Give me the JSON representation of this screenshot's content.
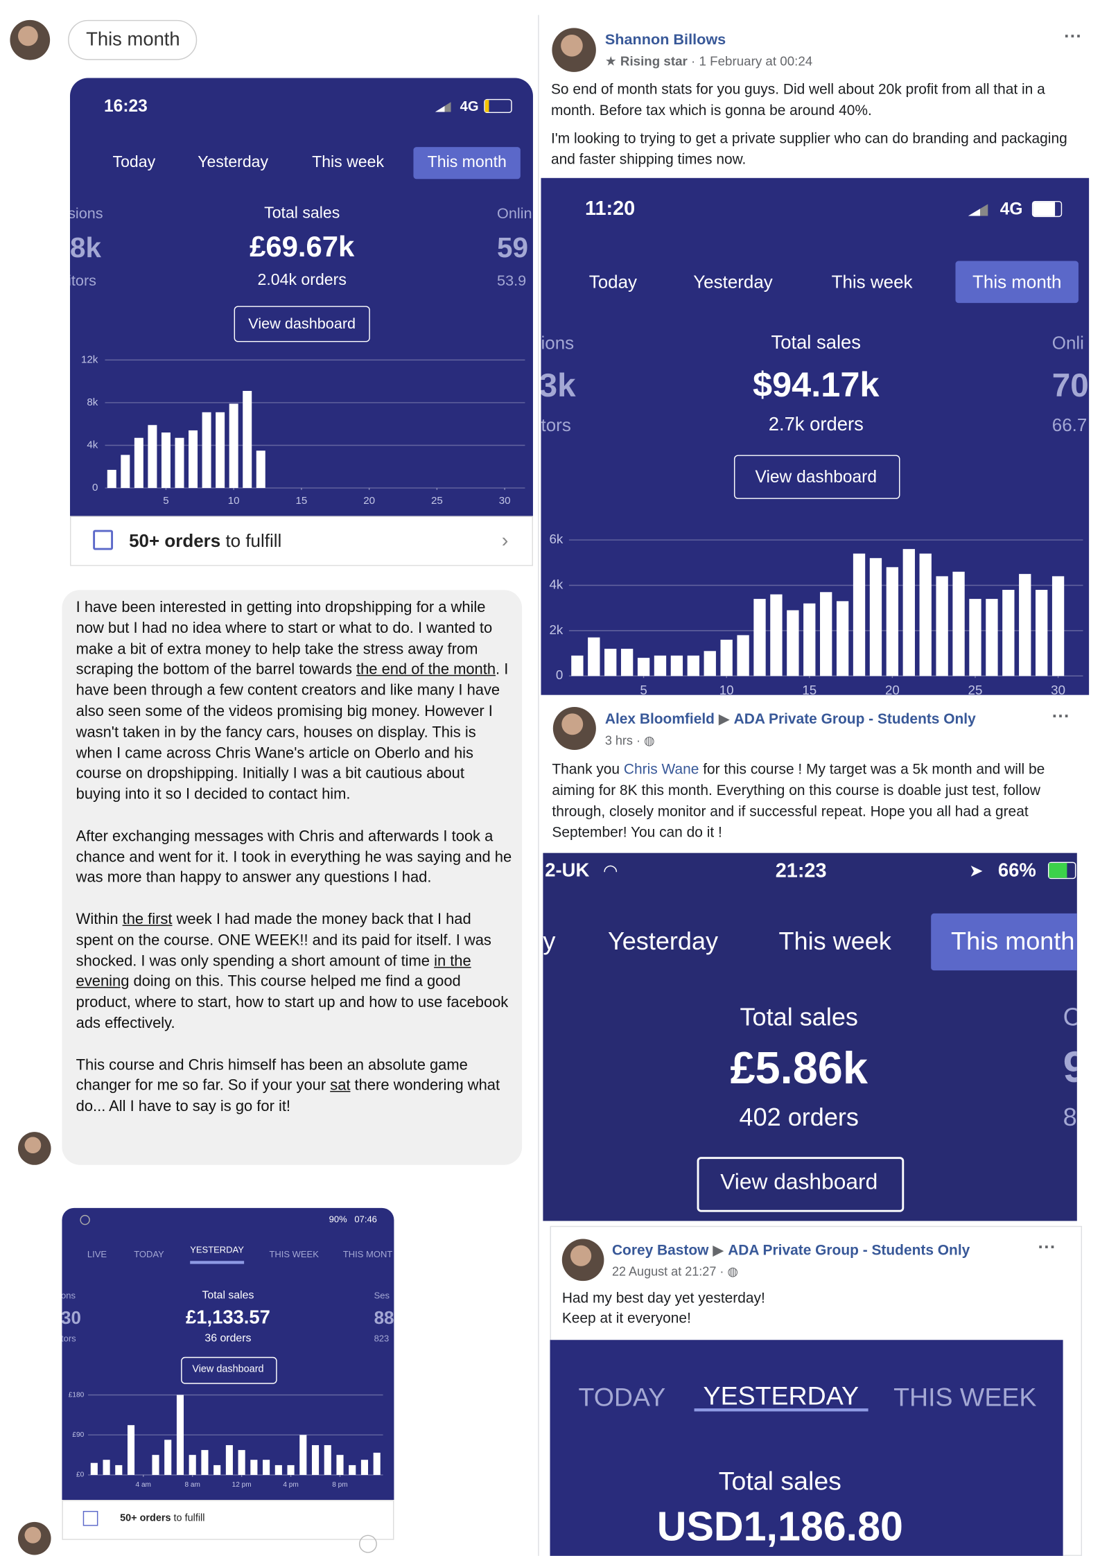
{
  "chip": "This month",
  "screens": [
    {
      "time": "16:23",
      "network": "4G",
      "tabs": [
        "Today",
        "Yesterday",
        "This week",
        "This month"
      ],
      "active_tab": 3,
      "left_stat": [
        "sions",
        "8k",
        "itors"
      ],
      "label": "Total sales",
      "total": "£69.67k",
      "orders": "2.04k orders",
      "right_stat": [
        "Onlin",
        "59",
        "53.9"
      ],
      "button": "View dashboard",
      "footer_bold": "50+ orders",
      "footer_rest": "to fulfill"
    },
    {
      "time": "11:20",
      "network": "4G",
      "tabs": [
        "Today",
        "Yesterday",
        "This week",
        "This month"
      ],
      "active_tab": 3,
      "left_stat": [
        "ions",
        "3k",
        "tors"
      ],
      "label": "Total sales",
      "total": "$94.17k",
      "orders": "2.7k orders",
      "right_stat": [
        "Onli",
        "70",
        "66.7"
      ],
      "button": "View dashboard"
    },
    {
      "carrier": "2-UK",
      "time": "21:23",
      "battery": "66%",
      "tabs": [
        "y",
        "Yesterday",
        "This week",
        "This month"
      ],
      "active_tab": 3,
      "label": "Total sales",
      "total": "£5.86k",
      "orders": "402 orders",
      "right_stat": [
        "C",
        "9",
        "8"
      ],
      "button": "View dashboard"
    },
    {
      "battery": "90%",
      "time": "07:46",
      "tabs": [
        "LIVE",
        "TODAY",
        "YESTERDAY",
        "THIS WEEK",
        "THIS MONT"
      ],
      "active_tab": 2,
      "left_stat": [
        "ons",
        "30",
        "tors"
      ],
      "label": "Total sales",
      "total": "£1,133.57",
      "orders": "36 orders",
      "right_stat": [
        "Ses",
        "88",
        "823"
      ],
      "button": "View dashboard",
      "footer_bold": "50+ orders",
      "footer_rest": "to fulfill"
    },
    {
      "tabs": [
        "TODAY",
        "YESTERDAY",
        "THIS WEEK"
      ],
      "active_tab": 1,
      "label": "Total sales",
      "total": "USD1,186.80"
    }
  ],
  "testimonial": [
    [
      "I have been interested in getting into dropshipping for a while now but I had no idea where to start or what to do. I wanted to make a bit of extra money to help take the stress away from scraping the bottom of the barrel towards ",
      "the end of the month",
      ". I have been through a few content creators and like many I have also seen some of the videos promising big money. However I wasn't taken in by the fancy cars, houses on display. This is when I came across Chris Wane's article on Oberlo and his course on dropshipping. Initially I was a bit cautious about buying into it so I decided to contact him."
    ],
    [
      "After exchanging messages with Chris and afterwards I took a chance and went for it. I took in everything he was saying and he was more than happy to answer any questions I had."
    ],
    [
      "Within ",
      "the first",
      " week I had made the money back that I had spent on the course. ONE WEEK!! and its paid for itself. I was shocked. I was only spending a short amount of time ",
      "in the evening",
      " doing on this. This course helped me find a good product, where to start, how to start up and how to use facebook ads effectively."
    ],
    [
      "This course and Chris himself has been an absolute game changer for me so far. So if your your ",
      "sat",
      " there wondering what do... All I have to say is go for it!"
    ]
  ],
  "posts": [
    {
      "name": "Shannon Billows",
      "badge": "Rising star",
      "date": "1 February at 00:24",
      "paragraphs": [
        "So end of month stats for you guys. Did well about 20k profit from all that in a month. Before tax which is gonna be around 40%.",
        "I'm looking to trying to get a private supplier who can do branding and packaging and faster shipping times now."
      ]
    },
    {
      "name": "Alex Bloomfield",
      "group": "ADA Private Group - Students Only",
      "date": "3 hrs",
      "text_before": "Thank you ",
      "link": "Chris Wane",
      "text_after": " for this course ! My target was a 5k month and will be aiming for 8K this month. Everything on this course is doable just test, follow through, closely monitor and if successful repeat. Hope you all had a great September! You can do it !"
    },
    {
      "name": "Corey Bastow",
      "group": "ADA Private Group - Students Only",
      "date": "22 August at 21:27",
      "lines": [
        "Had my best day yet yesterday!",
        "Keep at it everyone!"
      ]
    }
  ],
  "chart_data": [
    {
      "type": "bar",
      "color": "#ffffff",
      "grid": true,
      "x": [
        1,
        2,
        3,
        4,
        5,
        6,
        7,
        8,
        9,
        10,
        11,
        12
      ],
      "values": [
        1700,
        3100,
        4700,
        5900,
        5200,
        4700,
        5400,
        7100,
        7100,
        7900,
        9100,
        3500
      ],
      "xlim": [
        0.5,
        31.5
      ],
      "xticks": [
        5,
        10,
        15,
        20,
        25,
        30
      ],
      "ylim": [
        0,
        12000
      ],
      "yticks": [
        0,
        {
          "value": 4000,
          "label": "4k"
        },
        {
          "value": 8000,
          "label": "8k"
        },
        {
          "value": 12000,
          "label": "12k"
        }
      ]
    },
    {
      "type": "bar",
      "color": "#ffffff",
      "grid": true,
      "x": [
        1,
        2,
        3,
        4,
        5,
        6,
        7,
        8,
        9,
        10,
        11,
        12,
        13,
        14,
        15,
        16,
        17,
        18,
        19,
        20,
        21,
        22,
        23,
        24,
        25,
        26,
        27,
        28,
        29,
        30
      ],
      "values": [
        900,
        1700,
        1200,
        1200,
        800,
        900,
        900,
        900,
        1100,
        1600,
        1800,
        3400,
        3600,
        2900,
        3200,
        3700,
        3300,
        5400,
        5200,
        4800,
        5600,
        5400,
        4400,
        4600,
        3400,
        3400,
        3800,
        4500,
        3800,
        4400
      ],
      "xlim": [
        0.5,
        31.5
      ],
      "xticks": [
        5,
        10,
        15,
        20,
        25,
        30
      ],
      "ylim": [
        0,
        6000
      ],
      "yticks": [
        0,
        {
          "value": 2000,
          "label": "2k"
        },
        {
          "value": 4000,
          "label": "4k"
        },
        {
          "value": 6000,
          "label": "6k"
        }
      ]
    },
    {
      "type": "bar",
      "color": "#ffffff",
      "grid": true,
      "x": [
        0,
        1,
        2,
        3,
        4,
        5,
        6,
        7,
        8,
        9,
        10,
        11,
        12,
        13,
        14,
        15,
        16,
        17,
        18,
        19,
        20,
        21,
        22,
        23
      ],
      "values": [
        27,
        34,
        22,
        112,
        0,
        45,
        79,
        180,
        45,
        56,
        22,
        67,
        56,
        34,
        34,
        22,
        22,
        90,
        67,
        67,
        45,
        22,
        34,
        50
      ],
      "xlim": [
        -0.5,
        23.5
      ],
      "xticks": [
        {
          "value": 4,
          "label": "4 am"
        },
        {
          "value": 8,
          "label": "8 am"
        },
        {
          "value": 12,
          "label": "12 pm"
        },
        {
          "value": 16,
          "label": "4 pm"
        },
        {
          "value": 20,
          "label": "8 pm"
        }
      ],
      "ylim": [
        0,
        180
      ],
      "yticks": [
        {
          "value": 0,
          "label": "£0"
        },
        {
          "value": 90,
          "label": "£90"
        },
        {
          "value": 180,
          "label": "£180"
        }
      ]
    }
  ]
}
